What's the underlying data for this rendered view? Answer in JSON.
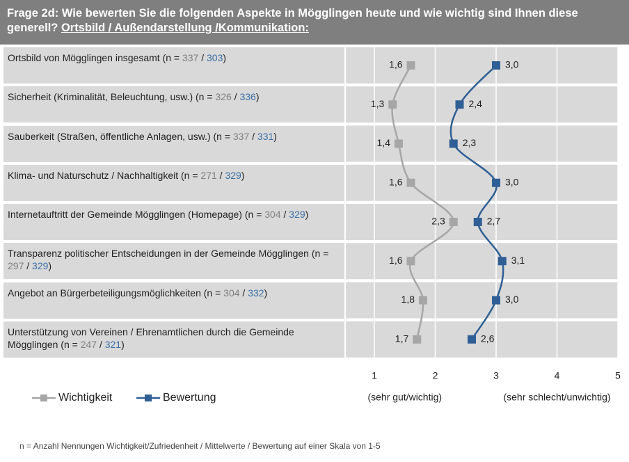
{
  "chart_data": {
    "type": "line",
    "title": "Frage 2d: Wie bewerten Sie die folgenden Aspekte in Mögglingen heute und wie wichtig sind Ihnen diese generell?",
    "topic": "Ortsbild / Außendarstellung /Kommunikation:",
    "categories": [
      "Ortsbild von Mögglingen insgesamt",
      "Sicherheit (Kriminalität, Beleuchtung, usw.)",
      "Sauberkeit (Straßen, öffentliche Anlagen, usw.)",
      "Klima- und Naturschutz / Nachhaltigkeit",
      "Internetauftritt der Gemeinde Mögglingen (Homepage)",
      "Transparenz politischer Entscheidungen in der Gemeinde Mögglingen",
      "Angebot an Bürgerbeteiligungsmöglichkeiten",
      "Unterstützung von Vereinen / Ehrenamtlichen durch die Gemeinde Mögglingen"
    ],
    "n_format": [
      "(n =",
      "/",
      ")"
    ],
    "n_wichtigkeit": [
      337,
      326,
      337,
      271,
      304,
      297,
      304,
      247
    ],
    "n_bewertung": [
      303,
      336,
      331,
      329,
      329,
      329,
      332,
      321
    ],
    "series": [
      {
        "name": "Wichtigkeit",
        "color": "#a6a6a6",
        "values": [
          1.6,
          1.3,
          1.4,
          1.6,
          2.3,
          1.6,
          1.8,
          1.7
        ],
        "value_labels": [
          "1,6",
          "1,3",
          "1,4",
          "1,6",
          "2,3",
          "1,6",
          "1,8",
          "1,7"
        ]
      },
      {
        "name": "Bewertung",
        "color": "#2f5f95",
        "values": [
          3.0,
          2.4,
          2.3,
          3.0,
          2.7,
          3.1,
          3.0,
          2.6
        ],
        "value_labels": [
          "3,0",
          "2,4",
          "2,3",
          "3,0",
          "2,7",
          "3,1",
          "3,0",
          "2,6"
        ]
      }
    ],
    "xlim": [
      1,
      5
    ],
    "xticks": [
      1,
      2,
      3,
      4,
      5
    ],
    "xlabel_left": "(sehr gut/wichtig)",
    "xlabel_right": "(sehr schlecht/unwichtig)",
    "grid": true,
    "footnote": "n = Anzahl Nennungen Wichtigkeit/Zufriedenheit  /  Mittelwerte  /  Bewertung auf einer Skala von 1-5"
  }
}
